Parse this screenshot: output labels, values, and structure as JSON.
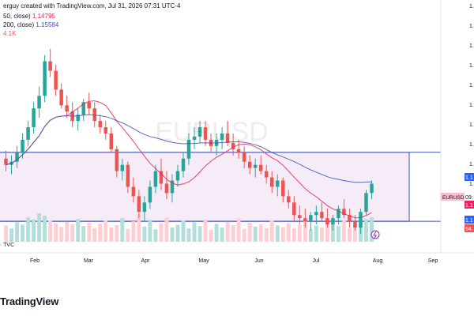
{
  "header": {
    "title_fragment": "erguy created with TradingView.com, Jul 31, 2026 07:31 UTC-4",
    "ma_short_label": "50, close)",
    "ma_short_value": "1.14795",
    "ma_long_label": "200, close)",
    "ma_long_value": "1.15584",
    "volume_fragment": "4.1K"
  },
  "source_label": "· TVC",
  "brand": "TradingView",
  "colors": {
    "up": "#26a69a",
    "down": "#ef5350",
    "ma_short": "#e91e63",
    "ma_long": "#3f51b5",
    "box_fill": "#f3e5f5",
    "box_line": "#3f51b5",
    "accent": "#2962ff"
  },
  "chart_data": {
    "type": "candlestick",
    "watermark": "EURUSD",
    "symbol_tag": "EURUSD",
    "x_tick_labels": [
      "Feb",
      "Mar",
      "Apr",
      "May",
      "Jun",
      "Jul",
      "Aug",
      "Sep"
    ],
    "price_axis_visible_fragments": [
      "1.2",
      "1.2",
      "1.1",
      "1.1",
      "1.1",
      "1.1",
      "1.1",
      "1.1",
      "1.1",
      "1.1",
      "1.1"
    ],
    "price_badges": [
      {
        "text": "1.1",
        "color": "#2962ff"
      },
      {
        "text": "1.1",
        "color": "#e91e63"
      },
      {
        "text": "09:",
        "color": "#ffffff"
      },
      {
        "text": "1.1",
        "color": "#2962ff"
      },
      {
        "text": "94.",
        "color": "#ef5350"
      }
    ],
    "moving_averages": [
      {
        "name": "MA 50",
        "last_value": 1.14795
      },
      {
        "name": "MA 200",
        "last_value": 1.15584
      }
    ],
    "range_box": {
      "top": 1.164,
      "bottom": 1.142,
      "start": "2026-01-16",
      "end": "2026-08-15"
    },
    "price_ylim": [
      1.137,
      1.205
    ],
    "grid": false,
    "candles": [
      [
        1.162,
        1.1645,
        1.158,
        1.16
      ],
      [
        1.16,
        1.163,
        1.157,
        1.161
      ],
      [
        1.161,
        1.166,
        1.159,
        1.164
      ],
      [
        1.164,
        1.17,
        1.162,
        1.168
      ],
      [
        1.168,
        1.174,
        1.166,
        1.172
      ],
      [
        1.172,
        1.18,
        1.17,
        1.178
      ],
      [
        1.178,
        1.185,
        1.175,
        1.182
      ],
      [
        1.182,
        1.195,
        1.18,
        1.193
      ],
      [
        1.193,
        1.197,
        1.188,
        1.19
      ],
      [
        1.19,
        1.192,
        1.182,
        1.184
      ],
      [
        1.184,
        1.186,
        1.178,
        1.179
      ],
      [
        1.179,
        1.182,
        1.175,
        1.177
      ],
      [
        1.177,
        1.18,
        1.172,
        1.174
      ],
      [
        1.174,
        1.178,
        1.171,
        1.176
      ],
      [
        1.176,
        1.181,
        1.174,
        1.18
      ],
      [
        1.18,
        1.183,
        1.176,
        1.178
      ],
      [
        1.178,
        1.18,
        1.172,
        1.174
      ],
      [
        1.174,
        1.176,
        1.17,
        1.172
      ],
      [
        1.172,
        1.174,
        1.168,
        1.17
      ],
      [
        1.17,
        1.172,
        1.164,
        1.165
      ],
      [
        1.165,
        1.166,
        1.156,
        1.158
      ],
      [
        1.158,
        1.162,
        1.155,
        1.16
      ],
      [
        1.16,
        1.161,
        1.151,
        1.153
      ],
      [
        1.153,
        1.156,
        1.148,
        1.15
      ],
      [
        1.15,
        1.152,
        1.143,
        1.145
      ],
      [
        1.145,
        1.15,
        1.142,
        1.148
      ],
      [
        1.148,
        1.155,
        1.146,
        1.153
      ],
      [
        1.153,
        1.16,
        1.151,
        1.158
      ],
      [
        1.158,
        1.162,
        1.152,
        1.154
      ],
      [
        1.154,
        1.158,
        1.149,
        1.151
      ],
      [
        1.151,
        1.157,
        1.148,
        1.155
      ],
      [
        1.155,
        1.16,
        1.153,
        1.158
      ],
      [
        1.158,
        1.164,
        1.156,
        1.162
      ],
      [
        1.162,
        1.17,
        1.16,
        1.168
      ],
      [
        1.168,
        1.172,
        1.165,
        1.169
      ],
      [
        1.169,
        1.174,
        1.167,
        1.172
      ],
      [
        1.172,
        1.174,
        1.166,
        1.168
      ],
      [
        1.168,
        1.17,
        1.164,
        1.166
      ],
      [
        1.166,
        1.17,
        1.163,
        1.168
      ],
      [
        1.168,
        1.172,
        1.165,
        1.17
      ],
      [
        1.17,
        1.174,
        1.166,
        1.167
      ],
      [
        1.167,
        1.17,
        1.163,
        1.165
      ],
      [
        1.165,
        1.168,
        1.162,
        1.164
      ],
      [
        1.164,
        1.166,
        1.159,
        1.161
      ],
      [
        1.161,
        1.163,
        1.157,
        1.159
      ],
      [
        1.159,
        1.162,
        1.156,
        1.16
      ],
      [
        1.16,
        1.163,
        1.157,
        1.158
      ],
      [
        1.158,
        1.16,
        1.154,
        1.156
      ],
      [
        1.156,
        1.158,
        1.151,
        1.153
      ],
      [
        1.153,
        1.157,
        1.15,
        1.155
      ],
      [
        1.155,
        1.156,
        1.148,
        1.15
      ],
      [
        1.15,
        1.152,
        1.146,
        1.148
      ],
      [
        1.148,
        1.15,
        1.142,
        1.144
      ],
      [
        1.144,
        1.147,
        1.141,
        1.143
      ],
      [
        1.143,
        1.146,
        1.14,
        1.142
      ],
      [
        1.142,
        1.145,
        1.139,
        1.144
      ],
      [
        1.144,
        1.147,
        1.141,
        1.145
      ],
      [
        1.145,
        1.148,
        1.142,
        1.143
      ],
      [
        1.143,
        1.146,
        1.14,
        1.141
      ],
      [
        1.141,
        1.144,
        1.139,
        1.143
      ],
      [
        1.143,
        1.147,
        1.141,
        1.146
      ],
      [
        1.146,
        1.149,
        1.143,
        1.144
      ],
      [
        1.144,
        1.146,
        1.14,
        1.142
      ],
      [
        1.142,
        1.144,
        1.139,
        1.14
      ],
      [
        1.14,
        1.146,
        1.138,
        1.145
      ],
      [
        1.145,
        1.152,
        1.144,
        1.151
      ],
      [
        1.151,
        1.155,
        1.149,
        1.154
      ]
    ],
    "volumes": [
      34,
      28,
      41,
      36,
      52,
      47,
      60,
      55,
      44,
      39,
      31,
      42,
      37,
      48,
      33,
      40,
      29,
      38,
      45,
      30,
      35,
      50,
      27,
      43,
      58,
      32,
      46,
      26,
      39,
      51,
      30,
      36,
      44,
      28,
      41,
      33,
      47,
      25,
      38,
      30,
      42,
      35,
      49,
      27,
      40,
      32,
      37,
      29,
      45,
      34,
      31,
      39,
      28,
      36,
      43,
      26,
      34,
      30,
      41,
      38,
      33,
      46,
      29,
      37,
      44,
      48,
      52
    ]
  }
}
